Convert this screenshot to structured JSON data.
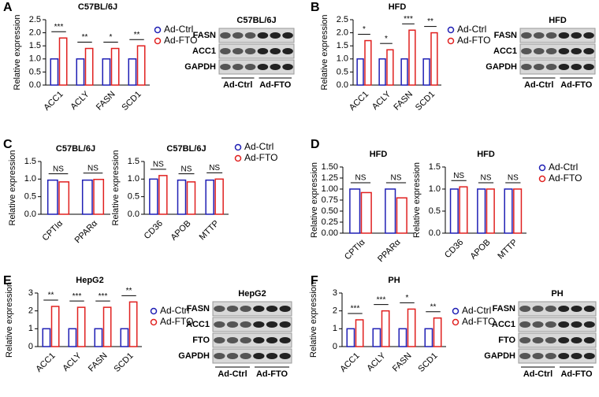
{
  "panels": [
    "A",
    "B",
    "C",
    "D",
    "E",
    "F"
  ],
  "chart_data": [
    {
      "type": "bar",
      "title": "C57BL/6J",
      "ylabel": "Relative expression",
      "categories": [
        "ACC1",
        "ACLY",
        "FASN",
        "SCD1"
      ],
      "series": [
        {
          "name": "Ad-Ctrl",
          "color": "#1f1fb4",
          "values": [
            1.0,
            1.0,
            1.0,
            1.0
          ]
        },
        {
          "name": "Ad-FTO",
          "color": "#e0201f",
          "values": [
            1.8,
            1.4,
            1.4,
            1.5
          ]
        }
      ],
      "annotations": [
        "***",
        "**",
        "*",
        "**"
      ],
      "ylim": [
        0,
        2.5
      ],
      "yticks": [
        {
          "value": 0,
          "label": "0.0"
        },
        0.5,
        {
          "value": 1,
          "label": "1.0"
        },
        1.5,
        {
          "value": 2,
          "label": "2.0"
        },
        2.5
      ],
      "legend": true
    },
    {
      "type": "bar",
      "title": "HFD",
      "ylabel": "Relative expression",
      "categories": [
        "ACC1",
        "ACLY",
        "FASN",
        "SCD1"
      ],
      "series": [
        {
          "name": "Ad-Ctrl",
          "color": "#1f1fb4",
          "values": [
            1.0,
            1.0,
            1.0,
            1.0
          ]
        },
        {
          "name": "Ad-FTO",
          "color": "#e0201f",
          "values": [
            1.7,
            1.35,
            2.1,
            2.0
          ]
        }
      ],
      "annotations": [
        "*",
        "*",
        "***",
        "**"
      ],
      "ylim": [
        0,
        2.5
      ],
      "yticks": [
        {
          "value": 0,
          "label": "0.0"
        },
        0.5,
        {
          "value": 1,
          "label": "1.0"
        },
        1.5,
        {
          "value": 2,
          "label": "2.0"
        },
        2.5
      ],
      "legend": true
    },
    {
      "type": "bar",
      "title": "C57BL/6J",
      "ylabel": "Relative expression",
      "categories": [
        "CPTIα",
        "PPARα"
      ],
      "series": [
        {
          "name": "Ad-Ctrl",
          "color": "#1f1fb4",
          "values": [
            0.97,
            0.97
          ]
        },
        {
          "name": "Ad-FTO",
          "color": "#e0201f",
          "values": [
            0.92,
            0.99
          ]
        }
      ],
      "annotations": [
        "NS",
        "NS"
      ],
      "ylim": [
        0,
        1.5
      ],
      "yticks": [
        {
          "value": 0,
          "label": "0.0"
        },
        0.5,
        {
          "value": 1,
          "label": "1.0"
        },
        1.5
      ],
      "legend": false
    },
    {
      "type": "bar",
      "title": "C57BL/6J",
      "ylabel": "Relative expression",
      "categories": [
        "CD36",
        "APOB",
        "MTTP"
      ],
      "series": [
        {
          "name": "Ad-Ctrl",
          "color": "#1f1fb4",
          "values": [
            1.0,
            0.97,
            0.97
          ]
        },
        {
          "name": "Ad-FTO",
          "color": "#e0201f",
          "values": [
            1.1,
            0.92,
            1.0
          ]
        }
      ],
      "annotations": [
        "NS",
        "NS",
        "NS"
      ],
      "ylim": [
        0,
        1.5
      ],
      "yticks": [
        {
          "value": 0,
          "label": "0.0"
        },
        0.5,
        {
          "value": 1,
          "label": "1.0"
        },
        1.5
      ],
      "legend": true
    },
    {
      "type": "bar",
      "title": "HFD",
      "ylabel": "Relative expression",
      "categories": [
        "CPTIα",
        "PPARα"
      ],
      "series": [
        {
          "name": "Ad-Ctrl",
          "color": "#1f1fb4",
          "values": [
            1.0,
            1.0
          ]
        },
        {
          "name": "Ad-FTO",
          "color": "#e0201f",
          "values": [
            0.92,
            0.8
          ]
        }
      ],
      "annotations": [
        "NS",
        "NS"
      ],
      "ylim": [
        0,
        1.5
      ],
      "yticks": [
        {
          "value": 0,
          "label": "0.00"
        },
        0.25,
        {
          "value": 0.5,
          "label": "0.50"
        },
        0.75,
        {
          "value": 1,
          "label": "1.00"
        },
        1.25,
        {
          "value": 1.5,
          "label": "1.50"
        }
      ],
      "legend": false
    },
    {
      "type": "bar",
      "title": "HFD",
      "ylabel": "Relative expression",
      "categories": [
        "CD36",
        "APOB",
        "MTTP"
      ],
      "series": [
        {
          "name": "Ad-Ctrl",
          "color": "#1f1fb4",
          "values": [
            1.0,
            1.0,
            1.0
          ]
        },
        {
          "name": "Ad-FTO",
          "color": "#e0201f",
          "values": [
            1.05,
            1.0,
            1.0
          ]
        }
      ],
      "annotations": [
        "NS",
        "NS",
        "NS"
      ],
      "ylim": [
        0,
        1.5
      ],
      "yticks": [
        {
          "value": 0,
          "label": "0.0"
        },
        0.5,
        {
          "value": 1,
          "label": "1.0"
        },
        1.5
      ],
      "legend": true
    },
    {
      "type": "bar",
      "title": "HepG2",
      "ylabel": "Relative expression",
      "categories": [
        "ACC1",
        "ACLY",
        "FASN",
        "SCD1"
      ],
      "series": [
        {
          "name": "Ad-Ctrl",
          "color": "#1f1fb4",
          "values": [
            1.0,
            1.0,
            1.0,
            1.0
          ]
        },
        {
          "name": "Ad-FTO",
          "color": "#e0201f",
          "values": [
            2.25,
            2.2,
            2.2,
            2.5
          ]
        }
      ],
      "annotations": [
        "**",
        "***",
        "***",
        "**"
      ],
      "ylim": [
        0,
        3
      ],
      "yticks": [
        0,
        1,
        2,
        3
      ],
      "legend": true
    },
    {
      "type": "bar",
      "title": "PH",
      "ylabel": "Relative expression",
      "categories": [
        "ACC1",
        "ACLY",
        "FASN",
        "SCD1"
      ],
      "series": [
        {
          "name": "Ad-Ctrl",
          "color": "#1f1fb4",
          "values": [
            1.0,
            1.0,
            1.0,
            1.0
          ]
        },
        {
          "name": "Ad-FTO",
          "color": "#e0201f",
          "values": [
            1.5,
            2.0,
            2.1,
            1.6
          ]
        }
      ],
      "annotations": [
        "***",
        "***",
        "*",
        "**"
      ],
      "ylim": [
        0,
        3
      ],
      "yticks": [
        0,
        1,
        2,
        3
      ],
      "legend": true
    }
  ],
  "blots": [
    {
      "title": "C57BL/6J",
      "rows": [
        "FASN",
        "ACC1",
        "GAPDH"
      ],
      "groups": [
        "Ad-Ctrl",
        "Ad-FTO"
      ]
    },
    {
      "title": "HFD",
      "rows": [
        "FASN",
        "ACC1",
        "GAPDH"
      ],
      "groups": [
        "Ad-Ctrl",
        "Ad-FTO"
      ]
    },
    {
      "title": "HepG2",
      "rows": [
        "FASN",
        "ACC1",
        "FTO",
        "GAPDH"
      ],
      "groups": [
        "Ad-Ctrl",
        "Ad-FTO"
      ]
    },
    {
      "title": "PH",
      "rows": [
        "FASN",
        "ACC1",
        "FTO",
        "GAPDH"
      ],
      "groups": [
        "Ad-Ctrl",
        "Ad-FTO"
      ]
    }
  ]
}
